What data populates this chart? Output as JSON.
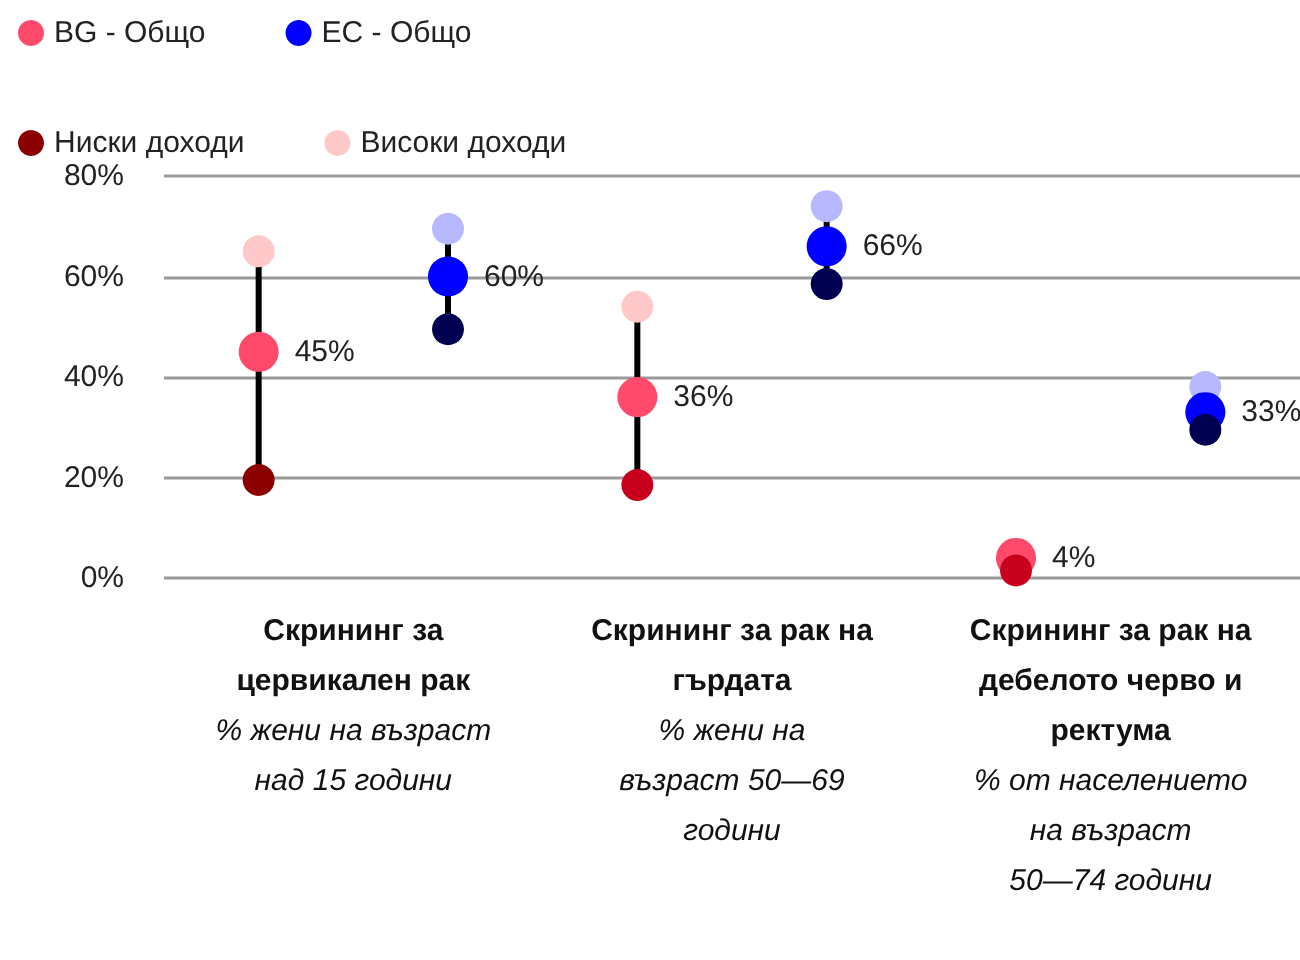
{
  "chart_data": {
    "type": "scatter",
    "categories": [
      "Скрининг за\nцервикален рак",
      "Скрининг за рак на\nгърдата",
      "Скрининг за рак на\nдебелото черво и\nректума"
    ],
    "annotations": [
      "% жени на възраст\nнад 15 години",
      "% жени на\nвъзраст 50—69\nгодини",
      "% от населението\nна възраст\n50—74 години"
    ],
    "series": [
      {
        "name": "BG - Общо",
        "color": "#ff4a6b",
        "values": [
          45,
          36,
          4
        ],
        "value_labels": [
          "45%",
          "36%",
          "4%"
        ]
      },
      {
        "name": "ЕС - Общо",
        "color": "#0000ff",
        "values": [
          60,
          66,
          33
        ],
        "value_labels": [
          "60%",
          "66%",
          "33%"
        ]
      },
      {
        "name": "Ниски доходи",
        "color": "#8b0000",
        "colors": [
          "#8b0000",
          "#c8001e",
          "#c8001e"
        ],
        "values": [
          19.5,
          18.5,
          1.5
        ]
      },
      {
        "color": "#000050",
        "values": [
          49.5,
          58.5,
          29.5
        ]
      },
      {
        "name": "Високи доходи",
        "color": "#ffc9c9",
        "values": [
          65,
          54,
          null
        ]
      },
      {
        "color": "#b8b8ff",
        "values": [
          69.5,
          74,
          38
        ]
      }
    ],
    "ylim": [
      0,
      80
    ],
    "yticks": [
      {
        "value": 0,
        "label": "0%"
      },
      {
        "value": 20,
        "label": "20%"
      },
      {
        "value": 40,
        "label": "40%"
      },
      {
        "value": 60,
        "label": "60%"
      },
      {
        "value": 80,
        "label": "80%"
      }
    ],
    "grid": "y",
    "legend": "top left",
    "marker": "circle"
  }
}
